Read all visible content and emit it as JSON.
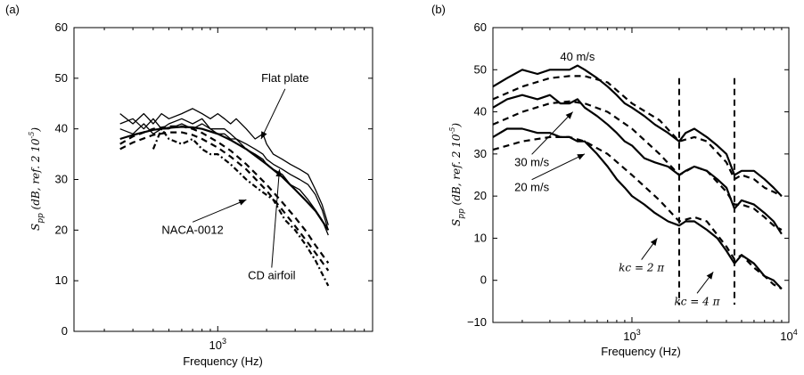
{
  "chart_data": [
    {
      "type": "line",
      "panel_label": "(a)",
      "xlabel": "Frequency (Hz)",
      "ylabel": "S_pp (dB, ref. 2 10^-5)",
      "xscale": "log",
      "xlim": [
        130,
        9000
      ],
      "ylim": [
        0,
        60
      ],
      "x_ticks": [
        {
          "value": 1000,
          "label": "10^3"
        }
      ],
      "y_ticks": [
        0,
        10,
        20,
        30,
        40,
        50,
        60
      ],
      "grid": false,
      "legend": "none",
      "annotations": [
        {
          "text": "Flat plate",
          "x": 2600,
          "y": 50,
          "arrow_to": [
            1850,
            38
          ]
        },
        {
          "text": "NACA-0012",
          "x": 700,
          "y": 20,
          "arrow_to": [
            1500,
            26
          ]
        },
        {
          "text": "CD airfoil",
          "x": 2150,
          "y": 11,
          "arrow_to": [
            2400,
            32
          ]
        }
      ],
      "series": [
        {
          "style": "solid-thin",
          "x": [
            250,
            300,
            350,
            400,
            450,
            500,
            600,
            700,
            800,
            900,
            1000,
            1100,
            1200,
            1300,
            1500,
            1700,
            1900,
            2000,
            2200,
            2500,
            2800,
            3200,
            3600,
            4000,
            4400,
            4800
          ],
          "y": [
            43,
            41,
            43,
            41,
            43,
            42,
            43,
            44,
            43,
            42,
            43,
            42,
            41,
            42,
            40,
            38,
            39,
            37,
            35,
            34,
            33,
            32,
            31,
            28,
            25,
            21
          ]
        },
        {
          "style": "solid-thin",
          "x": [
            250,
            300,
            350,
            400,
            450,
            500,
            600,
            700,
            800,
            900,
            1000,
            1100,
            1200,
            1300,
            1500,
            1700,
            1900,
            2000,
            2200,
            2500,
            2800,
            3200,
            3600,
            4000,
            4400,
            4800
          ],
          "y": [
            41,
            42,
            40,
            42,
            40,
            41,
            42,
            41,
            42,
            40,
            40,
            40,
            39,
            38,
            37,
            36,
            35,
            34,
            33,
            32,
            31,
            30,
            29,
            27,
            24,
            20
          ]
        },
        {
          "style": "solid-thin",
          "x": [
            250,
            300,
            350,
            400,
            450,
            500,
            600,
            700,
            800,
            900,
            1000,
            1100,
            1200,
            1300,
            1500,
            1700,
            1900,
            2000,
            2200,
            2500,
            2800,
            3200,
            3600,
            4000,
            4400,
            4800
          ],
          "y": [
            40,
            39,
            41,
            39,
            40,
            40,
            41,
            40,
            41,
            40,
            39,
            39,
            38,
            38,
            36,
            35,
            34,
            33,
            32,
            31,
            29,
            28,
            26,
            24,
            22,
            19
          ]
        },
        {
          "style": "solid-thick",
          "x": [
            250,
            300,
            400,
            500,
            600,
            700,
            800,
            1000,
            1200,
            1500,
            2000,
            2500,
            3000,
            3500,
            4000,
            4800
          ],
          "y": [
            38,
            38.8,
            39.8,
            40.2,
            40.4,
            40.3,
            40.0,
            39.0,
            37.8,
            36.0,
            33.0,
            30.5,
            28.0,
            25.8,
            23.8,
            20.0
          ]
        },
        {
          "style": "dashed",
          "x": [
            250,
            300,
            400,
            500,
            600,
            700,
            800,
            1000,
            1200,
            1500,
            2000,
            2500,
            3000,
            3500,
            4000,
            4800
          ],
          "y": [
            36,
            37.3,
            38.8,
            39.3,
            39.3,
            38.8,
            38.0,
            36.3,
            34.5,
            32.0,
            27.8,
            24.0,
            20.8,
            18.0,
            15.5,
            12.0
          ]
        },
        {
          "style": "dashed",
          "x": [
            250,
            300,
            400,
            500,
            600,
            700,
            800,
            1000,
            1200,
            1500,
            2000,
            2500,
            3000,
            3500,
            4000,
            4800
          ],
          "y": [
            37,
            38.5,
            40.0,
            40.5,
            40.5,
            40.0,
            39.2,
            37.4,
            35.7,
            33.0,
            29.0,
            25.5,
            22.5,
            19.8,
            17.0,
            13.5
          ]
        },
        {
          "style": "dashdot",
          "x": [
            400,
            450,
            500,
            600,
            700,
            800,
            900,
            1000,
            1200,
            1500,
            1800,
            2200,
            2600,
            3000,
            3500,
            4000,
            4800
          ],
          "y": [
            36,
            40,
            38,
            37,
            38,
            36,
            35,
            35,
            33,
            30,
            28,
            26,
            22,
            20,
            17,
            14,
            9
          ]
        }
      ]
    },
    {
      "type": "line",
      "panel_label": "(b)",
      "xlabel": "Frequency (Hz)",
      "ylabel": "S_pp (dB, ref. 2 10^-5)",
      "xscale": "log",
      "xlim": [
        130,
        10000
      ],
      "ylim": [
        -10,
        60
      ],
      "x_ticks": [
        {
          "value": 1000,
          "label": "10^3"
        },
        {
          "value": 10000,
          "label": "10^4"
        }
      ],
      "y_ticks": [
        -10,
        0,
        10,
        20,
        30,
        40,
        50,
        60
      ],
      "grid": false,
      "legend": "none",
      "vlines": [
        {
          "x": 2000,
          "style": "dashed",
          "label": "kc = 2 π"
        },
        {
          "x": 4500,
          "style": "dashed",
          "label": "kc = 4 π"
        }
      ],
      "annotations": [
        {
          "text": "40 m/s",
          "x": 450,
          "y": 53,
          "arrow_to": null
        },
        {
          "text": "30 m/s",
          "x": 230,
          "y": 28,
          "arrow_to": [
            420,
            40
          ]
        },
        {
          "text": "20 m/s",
          "x": 230,
          "y": 22,
          "arrow_to": [
            500,
            30
          ]
        },
        {
          "text": "kc = 2 π",
          "x": 1150,
          "y": 3,
          "arrow_to": [
            1450,
            10
          ]
        },
        {
          "text": "kc = 4 π",
          "x": 2600,
          "y": -5,
          "arrow_to": [
            3300,
            2
          ]
        }
      ],
      "series": [
        {
          "style": "solid-thick",
          "x": [
            130,
            160,
            200,
            250,
            300,
            350,
            400,
            450,
            500,
            600,
            700,
            800,
            900,
            1000,
            1200,
            1400,
            1700,
            2000,
            2200,
            2500,
            3000,
            3500,
            4000,
            4500,
            5000,
            6000,
            7000,
            8000,
            9000
          ],
          "y": [
            46,
            48,
            50,
            49,
            50,
            50,
            50,
            51,
            50,
            48,
            46,
            44,
            42,
            41,
            39,
            37,
            35,
            33,
            35,
            36,
            34,
            32,
            30,
            25,
            26,
            26,
            24,
            22,
            20
          ]
        },
        {
          "style": "dashed",
          "x": [
            130,
            200,
            300,
            400,
            500,
            700,
            1000,
            1500,
            2000,
            2500,
            3000,
            4000,
            4500,
            5000,
            6000,
            7000,
            8000,
            9000
          ],
          "y": [
            43,
            46,
            48,
            48.5,
            48.5,
            47,
            42,
            38,
            33,
            34,
            33,
            28,
            24,
            25,
            24,
            22,
            21,
            20
          ]
        },
        {
          "style": "solid-thick",
          "x": [
            130,
            160,
            200,
            250,
            300,
            350,
            400,
            450,
            500,
            600,
            700,
            800,
            900,
            1000,
            1200,
            1400,
            1700,
            2000,
            2200,
            2500,
            3000,
            3500,
            4000,
            4500,
            5000,
            6000,
            7000,
            8000,
            9000
          ],
          "y": [
            41,
            43,
            44,
            43,
            44,
            42,
            42,
            43,
            41,
            39,
            37,
            35,
            33,
            32,
            29,
            28,
            27,
            25,
            26,
            27,
            26,
            24,
            22,
            17,
            19,
            18,
            16,
            14,
            11
          ]
        },
        {
          "style": "dashed",
          "x": [
            130,
            200,
            300,
            400,
            500,
            700,
            1000,
            1500,
            2000,
            2500,
            3000,
            4000,
            4500,
            5000,
            6000,
            7000,
            8000,
            9000
          ],
          "y": [
            37,
            40,
            42,
            42.5,
            42,
            40,
            36,
            30,
            25,
            27,
            26,
            21,
            18,
            18,
            17,
            15,
            13,
            12
          ]
        },
        {
          "style": "solid-thick",
          "x": [
            130,
            160,
            200,
            250,
            300,
            350,
            400,
            450,
            500,
            600,
            700,
            800,
            900,
            1000,
            1200,
            1400,
            1700,
            2000,
            2200,
            2500,
            3000,
            3500,
            4000,
            4500,
            5000,
            6000,
            7000,
            8000,
            9000
          ],
          "y": [
            34,
            36,
            36,
            35,
            35,
            34,
            34,
            33,
            33,
            30,
            27,
            24,
            22,
            20,
            18,
            16,
            14,
            13,
            14,
            14,
            12,
            10,
            7,
            4,
            6,
            4,
            1,
            0,
            -2
          ]
        },
        {
          "style": "dashed",
          "x": [
            130,
            200,
            300,
            400,
            500,
            700,
            1000,
            1500,
            2000,
            2500,
            3000,
            4000,
            4500,
            5000,
            6000,
            7000,
            8000,
            9000
          ],
          "y": [
            31,
            33,
            34,
            34,
            33,
            30,
            25,
            19,
            14,
            15,
            14,
            8,
            5,
            6,
            3,
            1,
            -1,
            -2
          ]
        }
      ]
    }
  ]
}
